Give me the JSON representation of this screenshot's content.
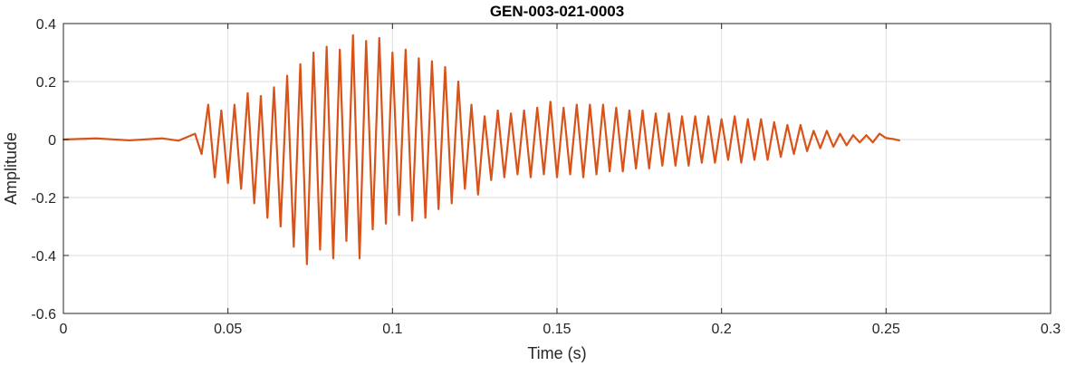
{
  "chart_data": {
    "type": "line",
    "title": "GEN-003-021-0003",
    "xlabel": "Time (s)",
    "ylabel": "Amplitude",
    "xlim": [
      0,
      0.3
    ],
    "ylim": [
      -0.6,
      0.4
    ],
    "xticks": [
      0,
      0.05,
      0.1,
      0.15,
      0.2,
      0.25,
      0.3
    ],
    "xtick_labels": [
      "0",
      "0.05",
      "0.1",
      "0.15",
      "0.2",
      "0.25",
      "0.3"
    ],
    "yticks": [
      -0.6,
      -0.4,
      -0.2,
      0,
      0.2,
      0.4
    ],
    "ytick_labels": [
      "-0.6",
      "-0.4",
      "-0.2",
      "0",
      "0.2",
      "0.4"
    ],
    "grid": true,
    "series": [
      {
        "color": "#D95319",
        "x": [
          0,
          0.01,
          0.02,
          0.03,
          0.035,
          0.04,
          0.042,
          0.044,
          0.046,
          0.048,
          0.05,
          0.052,
          0.054,
          0.056,
          0.058,
          0.06,
          0.062,
          0.064,
          0.066,
          0.068,
          0.07,
          0.072,
          0.074,
          0.076,
          0.078,
          0.08,
          0.082,
          0.084,
          0.086,
          0.088,
          0.09,
          0.092,
          0.094,
          0.096,
          0.098,
          0.1,
          0.102,
          0.104,
          0.106,
          0.108,
          0.11,
          0.112,
          0.114,
          0.116,
          0.118,
          0.12,
          0.122,
          0.124,
          0.126,
          0.128,
          0.13,
          0.132,
          0.134,
          0.136,
          0.138,
          0.14,
          0.142,
          0.144,
          0.146,
          0.148,
          0.15,
          0.152,
          0.154,
          0.156,
          0.158,
          0.16,
          0.162,
          0.164,
          0.166,
          0.168,
          0.17,
          0.172,
          0.174,
          0.176,
          0.178,
          0.18,
          0.182,
          0.184,
          0.186,
          0.188,
          0.19,
          0.192,
          0.194,
          0.196,
          0.198,
          0.2,
          0.202,
          0.204,
          0.206,
          0.208,
          0.21,
          0.212,
          0.214,
          0.216,
          0.218,
          0.22,
          0.222,
          0.224,
          0.226,
          0.228,
          0.23,
          0.232,
          0.234,
          0.236,
          0.238,
          0.24,
          0.242,
          0.244,
          0.246,
          0.248,
          0.25,
          0.252,
          0.254
        ],
        "y": [
          0,
          0.004,
          -0.003,
          0.004,
          -0.004,
          0.02,
          -0.05,
          0.12,
          -0.13,
          0.1,
          -0.15,
          0.12,
          -0.17,
          0.16,
          -0.22,
          0.15,
          -0.27,
          0.18,
          -0.3,
          0.22,
          -0.37,
          0.26,
          -0.43,
          0.3,
          -0.38,
          0.32,
          -0.41,
          0.31,
          -0.35,
          0.36,
          -0.41,
          0.34,
          -0.31,
          0.35,
          -0.29,
          0.3,
          -0.26,
          0.31,
          -0.28,
          0.28,
          -0.27,
          0.27,
          -0.24,
          0.25,
          -0.22,
          0.2,
          -0.17,
          0.12,
          -0.19,
          0.08,
          -0.14,
          0.1,
          -0.13,
          0.09,
          -0.12,
          0.1,
          -0.13,
          0.11,
          -0.12,
          0.13,
          -0.13,
          0.11,
          -0.12,
          0.12,
          -0.13,
          0.12,
          -0.12,
          0.12,
          -0.11,
          0.11,
          -0.11,
          0.1,
          -0.1,
          0.1,
          -0.1,
          0.09,
          -0.09,
          0.09,
          -0.09,
          0.08,
          -0.09,
          0.08,
          -0.08,
          0.08,
          -0.08,
          0.07,
          -0.07,
          0.08,
          -0.08,
          0.07,
          -0.07,
          0.07,
          -0.07,
          0.06,
          -0.06,
          0.05,
          -0.05,
          0.05,
          -0.04,
          0.03,
          -0.03,
          0.03,
          -0.025,
          0.02,
          -0.02,
          0.015,
          -0.01,
          0.015,
          -0.01,
          0.02,
          0.005,
          0.002,
          -0.003
        ]
      }
    ]
  }
}
